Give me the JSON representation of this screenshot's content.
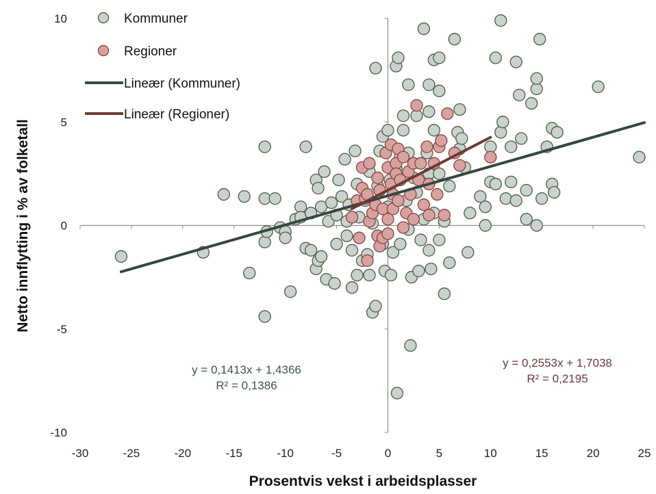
{
  "chart_data": {
    "type": "scatter",
    "title": "",
    "xlabel": "Prosentvis vekst i arbeidsplasser",
    "ylabel": "Netto innflytting i % av folketall",
    "xlim": [
      -30,
      25
    ],
    "ylim": [
      -10,
      10
    ],
    "x_ticks": [
      -30,
      -25,
      -20,
      -15,
      -10,
      -5,
      0,
      5,
      10,
      15,
      20,
      25
    ],
    "y_ticks": [
      -10,
      -5,
      0,
      5,
      10
    ],
    "x_tick_labels": [
      "-30",
      "-25",
      "-20",
      "-15",
      "-10",
      "-5",
      "0",
      "5",
      "10",
      "15",
      "20",
      "25"
    ],
    "y_tick_labels": [
      "-10",
      "-5",
      "0",
      "5",
      "10"
    ],
    "grid": false,
    "axes_cross_at_zero": true,
    "legend_position": "top-left",
    "legend": [
      {
        "label": "Kommuner",
        "kind": "marker",
        "color": "#c9d3cc",
        "edge": "#55624f"
      },
      {
        "label": "Regioner",
        "kind": "marker",
        "color": "#d7a3a0",
        "edge": "#8a4a48"
      },
      {
        "label": "Lineær (Kommuner)",
        "kind": "line",
        "color": "#344840"
      },
      {
        "label": "Lineær (Regioner)",
        "kind": "line",
        "color": "#6b3a35"
      }
    ],
    "series": [
      {
        "name": "Kommuner",
        "color": "#c9d3cc",
        "edge": "#55624f",
        "points": [
          [
            -26,
            -1.5
          ],
          [
            -18,
            -1.3
          ],
          [
            -16,
            1.5
          ],
          [
            -14,
            1.4
          ],
          [
            -13.5,
            -2.3
          ],
          [
            -12,
            3.8
          ],
          [
            -12,
            1.3
          ],
          [
            -12,
            -0.8
          ],
          [
            -12,
            -4.4
          ],
          [
            -11.8,
            -0.3
          ],
          [
            -11,
            1.3
          ],
          [
            -10.5,
            -0.1
          ],
          [
            -10,
            -0.3
          ],
          [
            -10,
            -0.6
          ],
          [
            -9.5,
            -3.2
          ],
          [
            -9,
            0.3
          ],
          [
            -8.5,
            0.9
          ],
          [
            -8.5,
            0.4
          ],
          [
            -8,
            3.8
          ],
          [
            -8,
            -1.1
          ],
          [
            -7.5,
            -1.2
          ],
          [
            -7.5,
            0.6
          ],
          [
            -7,
            -2.1
          ],
          [
            -6.8,
            -1.7
          ],
          [
            -6.5,
            -1.5
          ],
          [
            -7,
            2.2
          ],
          [
            -6.8,
            1.8
          ],
          [
            -6.5,
            0.9
          ],
          [
            -6.2,
            2.6
          ],
          [
            -6,
            -2.6
          ],
          [
            -5.8,
            0.2
          ],
          [
            -5.5,
            1.1
          ],
          [
            -5.2,
            -2.8
          ],
          [
            -5,
            -0.9
          ],
          [
            -5,
            0.5
          ],
          [
            -4.8,
            2.2
          ],
          [
            -4.5,
            1.4
          ],
          [
            -4.2,
            3.2
          ],
          [
            -4,
            0.2
          ],
          [
            -4,
            -0.5
          ],
          [
            -3.8,
            1.0
          ],
          [
            -3.5,
            -1.2
          ],
          [
            -3.5,
            -3.0
          ],
          [
            -3.2,
            3.6
          ],
          [
            -3,
            2.0
          ],
          [
            -3,
            -2.4
          ],
          [
            -2.8,
            0.4
          ],
          [
            -2.5,
            -1.7
          ],
          [
            -2.2,
            1.2
          ],
          [
            -2,
            -1.4
          ],
          [
            -1.8,
            2.6
          ],
          [
            -1.8,
            -2.4
          ],
          [
            -1.5,
            0.1
          ],
          [
            -1.5,
            -4.2
          ],
          [
            -1.2,
            -3.9
          ],
          [
            -1.2,
            7.6
          ],
          [
            -1.0,
            1.9
          ],
          [
            -0.8,
            3.6
          ],
          [
            -0.5,
            4.3
          ],
          [
            -0.5,
            -0.9
          ],
          [
            -0.3,
            -2.2
          ],
          [
            0,
            4.6
          ],
          [
            0,
            0.9
          ],
          [
            0.2,
            2.2
          ],
          [
            0.3,
            -2.4
          ],
          [
            0.5,
            -1.3
          ],
          [
            0.8,
            7.7
          ],
          [
            0.8,
            2.8
          ],
          [
            0.9,
            -8.1
          ],
          [
            1.0,
            8.1
          ],
          [
            1.2,
            3.3
          ],
          [
            1.2,
            -0.9
          ],
          [
            1.5,
            5.3
          ],
          [
            1.5,
            4.6
          ],
          [
            1.8,
            1.2
          ],
          [
            2,
            6.8
          ],
          [
            2,
            3.5
          ],
          [
            2,
            -0.2
          ],
          [
            2.2,
            -5.8
          ],
          [
            2.3,
            -2.5
          ],
          [
            2.5,
            2.3
          ],
          [
            2.8,
            5.3
          ],
          [
            2.8,
            1.6
          ],
          [
            3,
            -2.2
          ],
          [
            3.2,
            -0.7
          ],
          [
            3.5,
            9.5
          ],
          [
            3.5,
            0.3
          ],
          [
            3.8,
            3.5
          ],
          [
            4,
            6.8
          ],
          [
            4,
            5.5
          ],
          [
            4,
            2.5
          ],
          [
            4,
            -1.2
          ],
          [
            4.2,
            -2.1
          ],
          [
            4.5,
            8.0
          ],
          [
            4.5,
            4.6
          ],
          [
            4.5,
            0.6
          ],
          [
            5,
            8.1
          ],
          [
            5,
            6.5
          ],
          [
            5,
            2.5
          ],
          [
            5,
            -0.7
          ],
          [
            5.5,
            0.2
          ],
          [
            5.5,
            -3.3
          ],
          [
            6,
            1.9
          ],
          [
            6,
            -1.8
          ],
          [
            6.5,
            9.0
          ],
          [
            6.8,
            4.5
          ],
          [
            7,
            5.6
          ],
          [
            7,
            3.7
          ],
          [
            7.2,
            4.2
          ],
          [
            7.5,
            2.8
          ],
          [
            7.8,
            -1.3
          ],
          [
            8,
            0.6
          ],
          [
            9,
            1.4
          ],
          [
            9.5,
            0.0
          ],
          [
            9.5,
            0.9
          ],
          [
            10,
            2.1
          ],
          [
            10,
            3.8
          ],
          [
            10.5,
            8.1
          ],
          [
            10.5,
            2.0
          ],
          [
            11,
            9.9
          ],
          [
            11,
            4.5
          ],
          [
            11.2,
            5.0
          ],
          [
            11.5,
            1.3
          ],
          [
            12,
            3.8
          ],
          [
            12,
            2.1
          ],
          [
            12.5,
            7.9
          ],
          [
            12.5,
            1.2
          ],
          [
            12.8,
            6.3
          ],
          [
            13,
            4.2
          ],
          [
            13.5,
            0.3
          ],
          [
            13.5,
            1.7
          ],
          [
            14,
            5.9
          ],
          [
            14.5,
            6.6
          ],
          [
            14.5,
            7.1
          ],
          [
            14.5,
            0.0
          ],
          [
            14.8,
            9.0
          ],
          [
            15,
            1.3
          ],
          [
            15.5,
            3.8
          ],
          [
            16,
            2.0
          ],
          [
            16,
            4.7
          ],
          [
            16.2,
            1.6
          ],
          [
            16.5,
            4.5
          ],
          [
            20.5,
            6.7
          ],
          [
            24.5,
            3.3
          ]
        ]
      },
      {
        "name": "Regioner",
        "color": "#d7a3a0",
        "edge": "#8a4a48",
        "points": [
          [
            -3.5,
            0.4
          ],
          [
            -3,
            1.2
          ],
          [
            -2.8,
            -0.6
          ],
          [
            -2.5,
            1.8
          ],
          [
            -2.5,
            2.8
          ],
          [
            -2.2,
            1.3
          ],
          [
            -2,
            1.5
          ],
          [
            -2,
            -1.7
          ],
          [
            -1.8,
            3.0
          ],
          [
            -1.8,
            0.2
          ],
          [
            -1.5,
            0.6
          ],
          [
            -1.2,
            1.0
          ],
          [
            -1,
            2.3
          ],
          [
            -1,
            -0.5
          ],
          [
            -0.8,
            -1.0
          ],
          [
            -0.8,
            1.7
          ],
          [
            -0.5,
            0.8
          ],
          [
            -0.5,
            -0.6
          ],
          [
            -0.2,
            3.5
          ],
          [
            0,
            2.8
          ],
          [
            0,
            0.3
          ],
          [
            0,
            -0.4
          ],
          [
            0.3,
            3.9
          ],
          [
            0.3,
            2.0
          ],
          [
            0.5,
            1.5
          ],
          [
            0.5,
            0.8
          ],
          [
            0.8,
            3.0
          ],
          [
            0.8,
            2.5
          ],
          [
            1,
            3.7
          ],
          [
            1,
            1.2
          ],
          [
            1.2,
            2.2
          ],
          [
            1.5,
            -0.1
          ],
          [
            1.5,
            3.3
          ],
          [
            1.8,
            0.6
          ],
          [
            2,
            2.6
          ],
          [
            2.2,
            1.5
          ],
          [
            2.5,
            3.0
          ],
          [
            2.5,
            0.3
          ],
          [
            2.8,
            5.8
          ],
          [
            3,
            2.2
          ],
          [
            3.2,
            3.0
          ],
          [
            3.5,
            1.0
          ],
          [
            3.8,
            3.8
          ],
          [
            4,
            2.0
          ],
          [
            4,
            0.5
          ],
          [
            4.5,
            3.0
          ],
          [
            4.8,
            1.5
          ],
          [
            5,
            3.8
          ],
          [
            5.2,
            4.1
          ],
          [
            5.5,
            0.5
          ],
          [
            5.8,
            5.4
          ],
          [
            6.5,
            3.5
          ],
          [
            7,
            2.9
          ],
          [
            10,
            3.3
          ]
        ]
      }
    ],
    "trendlines": [
      {
        "name": "Lineær (Kommuner)",
        "slope": 0.1413,
        "intercept": 1.4366,
        "x_range": [
          -26,
          25
        ],
        "color": "#344840"
      },
      {
        "name": "Lineær (Regioner)",
        "slope": 0.2553,
        "intercept": 1.7038,
        "x_range": [
          -3.5,
          10
        ],
        "color": "#6b3a35"
      }
    ],
    "annotations": [
      {
        "line1": "y = 0,1413x + 1,4366",
        "line2": "R² = 0,1386",
        "color": "#3d5247"
      },
      {
        "line1": "y = 0,2553x + 1,7038",
        "line2": "R² = 0,2195",
        "color": "#6b3a35"
      }
    ]
  }
}
